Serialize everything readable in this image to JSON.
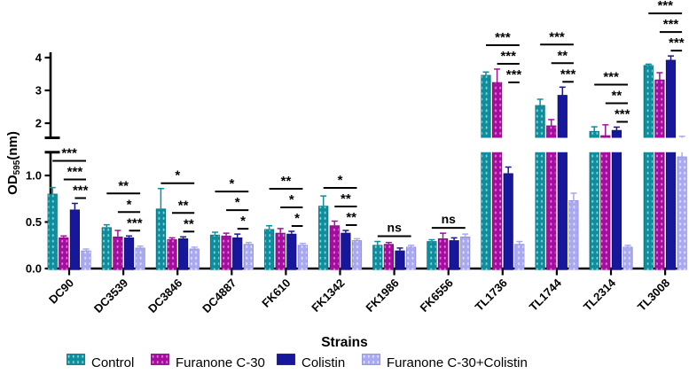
{
  "figure": {
    "ylabel_prefix": "OD",
    "ylabel_sub": "595",
    "ylabel_suffix": "(nm)",
    "xlabel": "Strains"
  },
  "chart_data": {
    "type": "bar",
    "title": "",
    "xlabel": "Strains",
    "ylabel": "OD595(nm)",
    "grid": false,
    "legend_position": "bottom",
    "axis_break": {
      "lower_range": [
        0,
        1.25
      ],
      "upper_range": [
        1.55,
        4.15
      ],
      "lower_tick_labels": [
        "0.0",
        "0.5",
        "1.0"
      ],
      "lower_tick_values": [
        0,
        0.5,
        1.0
      ],
      "upper_tick_labels": [
        "2",
        "3",
        "4"
      ],
      "upper_tick_values": [
        2,
        3,
        4
      ]
    },
    "categories": [
      "DC90",
      "DC3539",
      "DC3846",
      "DC4887",
      "FK610",
      "FK1342",
      "FK1986",
      "FK6556",
      "TL1736",
      "TL1744",
      "TL2314",
      "TL3008"
    ],
    "series": [
      {
        "name": "Control",
        "color": "#0E8D9D",
        "pattern_dot": "#86D4DC",
        "edge": "#0A6E7B",
        "values": [
          0.8,
          0.44,
          0.64,
          0.36,
          0.42,
          0.67,
          0.25,
          0.29,
          3.46,
          2.54,
          1.75,
          3.76
        ],
        "errors": [
          0.07,
          0.03,
          0.22,
          0.03,
          0.04,
          0.11,
          0.04,
          0.02,
          0.1,
          0.19,
          0.14,
          0.04
        ]
      },
      {
        "name": "Furanone C-30",
        "color": "#A40D9E",
        "pattern_dot": "#DE7FD6",
        "edge": "#7C0A78",
        "values": [
          0.33,
          0.34,
          0.31,
          0.35,
          0.38,
          0.46,
          0.26,
          0.32,
          3.24,
          1.92,
          1.62,
          3.32
        ],
        "errors": [
          0.02,
          0.07,
          0.02,
          0.03,
          0.05,
          0.05,
          0.02,
          0.06,
          0.41,
          0.19,
          0.33,
          0.22
        ]
      },
      {
        "name": "Colistin",
        "color": "#17179B",
        "pattern_dot": null,
        "edge": "#10106E",
        "values": [
          0.63,
          0.33,
          0.32,
          0.33,
          0.37,
          0.38,
          0.19,
          0.3,
          1.02,
          2.85,
          1.78,
          3.92
        ],
        "errors": [
          0.07,
          0.02,
          0.02,
          0.04,
          0.03,
          0.03,
          0.03,
          0.03,
          0.07,
          0.25,
          0.1,
          0.13
        ]
      },
      {
        "name": "Furanone C-30+Colistin",
        "color": "#A9A9F1",
        "pattern_dot": "#E3E3FB",
        "edge": "#8C8CDD",
        "values": [
          0.19,
          0.22,
          0.21,
          0.26,
          0.25,
          0.3,
          0.23,
          0.34,
          0.26,
          0.73,
          0.23,
          1.2
        ],
        "errors": [
          0.02,
          0.02,
          0.02,
          0.02,
          0.02,
          0.02,
          0.02,
          0.03,
          0.03,
          0.08,
          0.02,
          0.4
        ]
      }
    ],
    "significance": [
      {
        "category": "DC90",
        "labels": [
          "***",
          "***",
          "***"
        ]
      },
      {
        "category": "DC3539",
        "labels": [
          "**",
          "*",
          "***"
        ]
      },
      {
        "category": "DC3846",
        "labels": [
          "*",
          "**",
          "**"
        ]
      },
      {
        "category": "DC4887",
        "labels": [
          "*",
          "*",
          "*"
        ]
      },
      {
        "category": "FK610",
        "labels": [
          "**",
          "*",
          "*"
        ]
      },
      {
        "category": "FK1342",
        "labels": [
          "*",
          "**",
          "**"
        ]
      },
      {
        "category": "FK1986",
        "labels": [
          "ns"
        ]
      },
      {
        "category": "FK6556",
        "labels": [
          "ns"
        ]
      },
      {
        "category": "TL1736",
        "labels": [
          "***",
          "***",
          "***"
        ]
      },
      {
        "category": "TL1744",
        "labels": [
          "***",
          "**",
          "***"
        ]
      },
      {
        "category": "TL2314",
        "labels": [
          "***",
          "**",
          "***"
        ]
      },
      {
        "category": "TL3008",
        "labels": [
          "***",
          "***",
          "***"
        ]
      }
    ]
  }
}
